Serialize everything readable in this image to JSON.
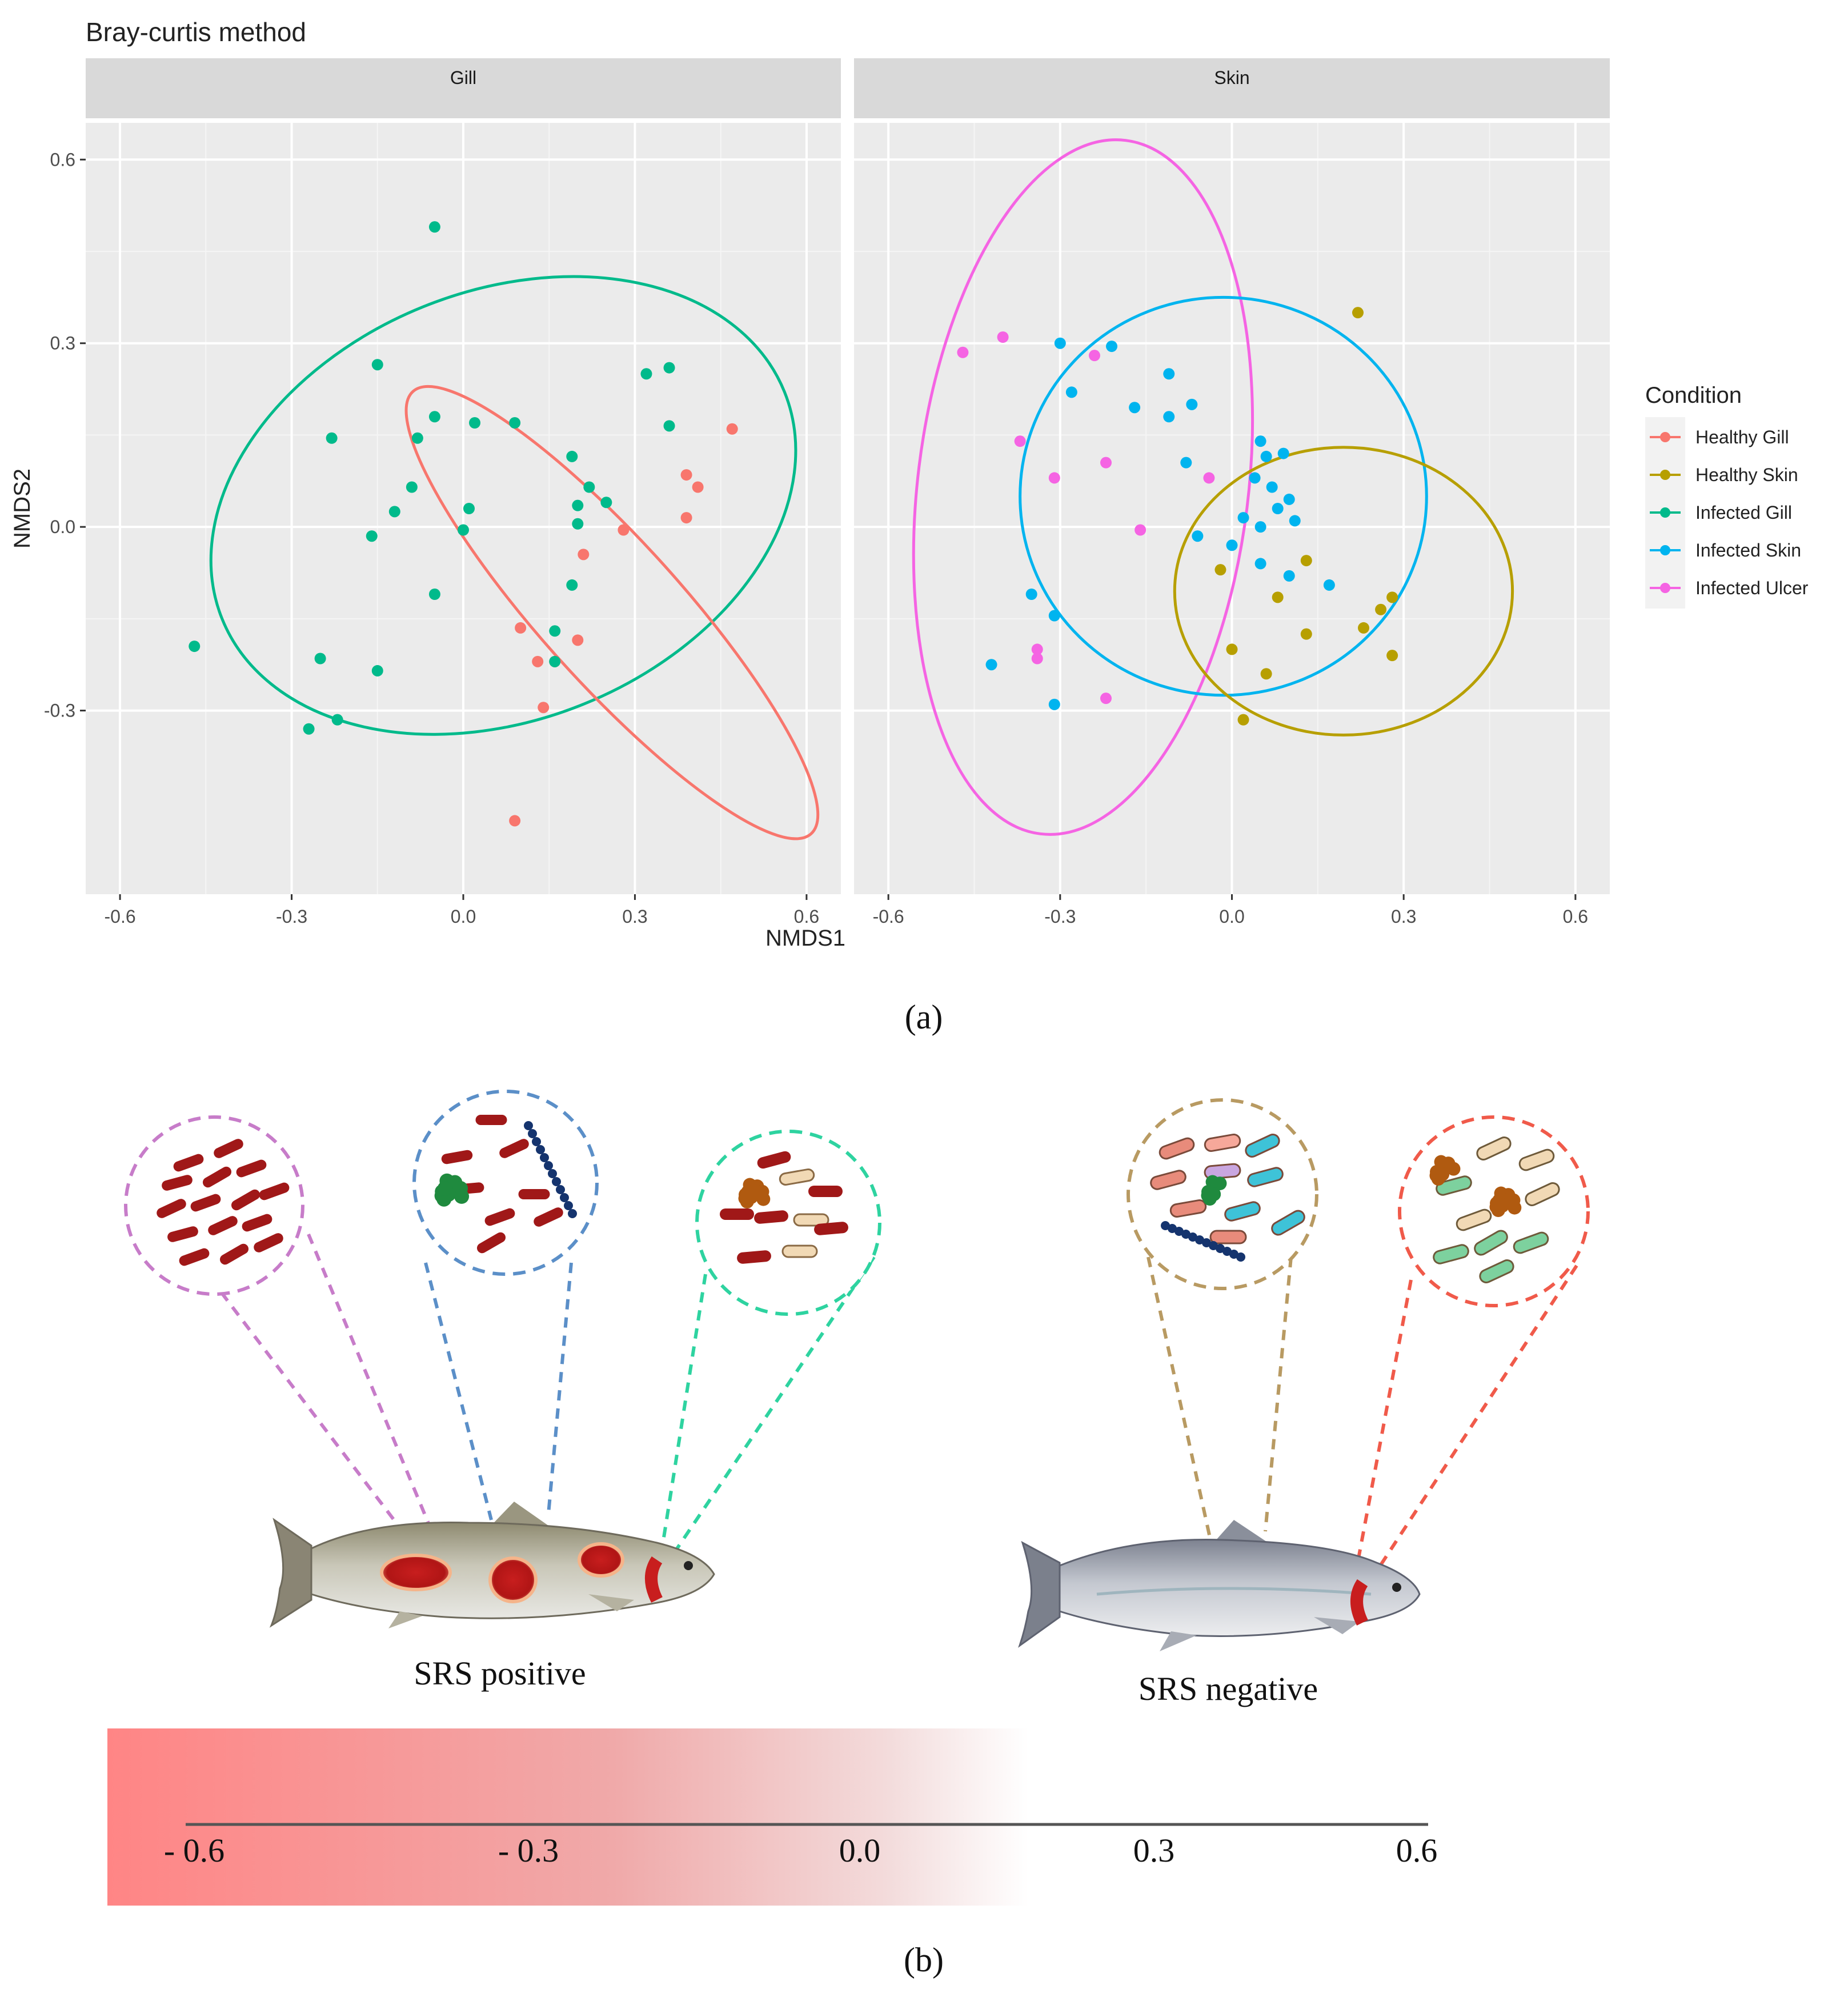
{
  "panel_a": {
    "caption": "(a)",
    "chart_data": {
      "type": "scatter",
      "title": "Bray-curtis method",
      "xlabel": "NMDS1",
      "ylabel": "NMDS2",
      "xlim": [
        -0.66,
        0.66
      ],
      "ylim": [
        -0.6,
        0.66
      ],
      "x_ticks": [
        -0.6,
        -0.3,
        0.0,
        0.3,
        0.6
      ],
      "x_tick_labels": [
        "-0.6",
        "-0.3",
        "0.0",
        "0.3",
        "0.6"
      ],
      "y_ticks": [
        0.6,
        0.3,
        0.0,
        -0.3
      ],
      "y_tick_labels": [
        "0.6",
        "0.3",
        "0.0",
        "-0.3"
      ],
      "grid": true,
      "legend_title": "Condition",
      "legend_position": "right",
      "facets": [
        {
          "name": "Gill",
          "series": [
            {
              "name": "Healthy Gill",
              "color": "#F8766D",
              "points": [
                [
                  0.47,
                  0.16
                ],
                [
                  0.39,
                  0.085
                ],
                [
                  0.41,
                  0.065
                ],
                [
                  0.39,
                  0.015
                ],
                [
                  0.28,
                  -0.005
                ],
                [
                  0.21,
                  -0.045
                ],
                [
                  0.1,
                  -0.165
                ],
                [
                  0.2,
                  -0.185
                ],
                [
                  0.13,
                  -0.22
                ],
                [
                  0.16,
                  -0.22
                ],
                [
                  0.14,
                  -0.295
                ],
                [
                  0.09,
                  -0.48
                ]
              ]
            },
            {
              "name": "Infected Gill",
              "color": "#00BA8B",
              "points": [
                [
                  -0.05,
                  0.49
                ],
                [
                  -0.15,
                  0.265
                ],
                [
                  0.32,
                  0.25
                ],
                [
                  0.36,
                  0.26
                ],
                [
                  -0.23,
                  0.145
                ],
                [
                  -0.08,
                  0.145
                ],
                [
                  -0.05,
                  0.18
                ],
                [
                  0.02,
                  0.17
                ],
                [
                  0.09,
                  0.17
                ],
                [
                  0.36,
                  0.165
                ],
                [
                  0.19,
                  0.115
                ],
                [
                  -0.09,
                  0.065
                ],
                [
                  0.22,
                  0.065
                ],
                [
                  -0.12,
                  0.025
                ],
                [
                  0.01,
                  0.03
                ],
                [
                  0.2,
                  0.035
                ],
                [
                  0.25,
                  0.04
                ],
                [
                  0.2,
                  0.005
                ],
                [
                  -0.16,
                  -0.015
                ],
                [
                  0.0,
                  -0.005
                ],
                [
                  -0.05,
                  -0.11
                ],
                [
                  0.19,
                  -0.095
                ],
                [
                  0.16,
                  -0.17
                ],
                [
                  -0.47,
                  -0.195
                ],
                [
                  -0.25,
                  -0.215
                ],
                [
                  -0.15,
                  -0.235
                ],
                [
                  0.16,
                  -0.22
                ],
                [
                  -0.27,
                  -0.33
                ],
                [
                  -0.22,
                  -0.315
                ]
              ]
            }
          ],
          "ellipses": [
            {
              "name": "Infected Gill",
              "color": "#00BA8B",
              "cx": 0.07,
              "cy": 0.035,
              "rx": 0.53,
              "ry": 0.35,
              "angle_deg": 22
            },
            {
              "name": "Healthy Gill",
              "color": "#F8766D",
              "cx": 0.26,
              "cy": -0.14,
              "rx": 0.52,
              "ry": 0.115,
              "angle_deg": -48
            }
          ]
        },
        {
          "name": "Skin",
          "series": [
            {
              "name": "Healthy Skin",
              "color": "#B79F00",
              "points": [
                [
                  0.22,
                  0.35
                ],
                [
                  0.13,
                  -0.055
                ],
                [
                  -0.02,
                  -0.07
                ],
                [
                  0.08,
                  -0.115
                ],
                [
                  0.28,
                  -0.115
                ],
                [
                  0.26,
                  -0.135
                ],
                [
                  0.23,
                  -0.165
                ],
                [
                  0.13,
                  -0.175
                ],
                [
                  0.0,
                  -0.2
                ],
                [
                  0.28,
                  -0.21
                ],
                [
                  0.06,
                  -0.24
                ],
                [
                  0.02,
                  -0.315
                ]
              ]
            },
            {
              "name": "Infected Skin",
              "color": "#00B4EF",
              "points": [
                [
                  -0.3,
                  0.3
                ],
                [
                  -0.21,
                  0.295
                ],
                [
                  -0.11,
                  0.25
                ],
                [
                  -0.28,
                  0.22
                ],
                [
                  -0.17,
                  0.195
                ],
                [
                  -0.07,
                  0.2
                ],
                [
                  -0.11,
                  0.18
                ],
                [
                  0.05,
                  0.14
                ],
                [
                  0.09,
                  0.12
                ],
                [
                  -0.08,
                  0.105
                ],
                [
                  0.06,
                  0.115
                ],
                [
                  0.04,
                  0.08
                ],
                [
                  0.07,
                  0.065
                ],
                [
                  0.1,
                  0.045
                ],
                [
                  0.08,
                  0.03
                ],
                [
                  0.02,
                  0.015
                ],
                [
                  0.05,
                  0.0
                ],
                [
                  0.11,
                  0.01
                ],
                [
                  -0.06,
                  -0.015
                ],
                [
                  0.0,
                  -0.03
                ],
                [
                  0.05,
                  -0.06
                ],
                [
                  0.1,
                  -0.08
                ],
                [
                  0.17,
                  -0.095
                ],
                [
                  -0.35,
                  -0.11
                ],
                [
                  -0.31,
                  -0.145
                ],
                [
                  -0.42,
                  -0.225
                ],
                [
                  -0.31,
                  -0.29
                ]
              ]
            },
            {
              "name": "Infected Ulcer",
              "color": "#F564E3",
              "points": [
                [
                  -0.47,
                  0.285
                ],
                [
                  -0.4,
                  0.31
                ],
                [
                  -0.24,
                  0.28
                ],
                [
                  -0.37,
                  0.14
                ],
                [
                  -0.22,
                  0.105
                ],
                [
                  -0.31,
                  0.08
                ],
                [
                  -0.04,
                  0.08
                ],
                [
                  -0.16,
                  -0.005
                ],
                [
                  -0.34,
                  -0.2
                ],
                [
                  -0.34,
                  -0.215
                ],
                [
                  -0.22,
                  -0.28
                ]
              ]
            }
          ],
          "ellipses": [
            {
              "name": "Infected Ulcer",
              "color": "#F564E3",
              "cx": -0.26,
              "cy": 0.065,
              "rx": 0.61,
              "ry": 0.27,
              "angle_deg": 83
            },
            {
              "name": "Infected Skin",
              "color": "#00B4EF",
              "cx": -0.015,
              "cy": 0.05,
              "rx": 0.355,
              "ry": 0.325,
              "angle_deg": 0
            },
            {
              "name": "Healthy Skin",
              "color": "#B79F00",
              "cx": 0.195,
              "cy": -0.105,
              "rx": 0.295,
              "ry": 0.235,
              "angle_deg": 0
            }
          ]
        }
      ]
    }
  },
  "panel_b": {
    "caption": "(b)",
    "left_fish_label": "SRS positive",
    "right_fish_label": "SRS negative",
    "scale_tick_labels": [
      "- 0.6",
      "- 0.3",
      "0.0",
      "0.3",
      "0.6"
    ],
    "colors": {
      "ulcer_circle": "#C77CC9",
      "skin_circle": "#5B8FC8",
      "gill_circle": "#2ED3A0",
      "healthy_skin_circle": "#B89A62",
      "healthy_gill_circle": "#F05A4A",
      "lesion": "#C81E1E",
      "bacteria_red": "#A01818",
      "gradient_start": "#FF8585"
    }
  }
}
